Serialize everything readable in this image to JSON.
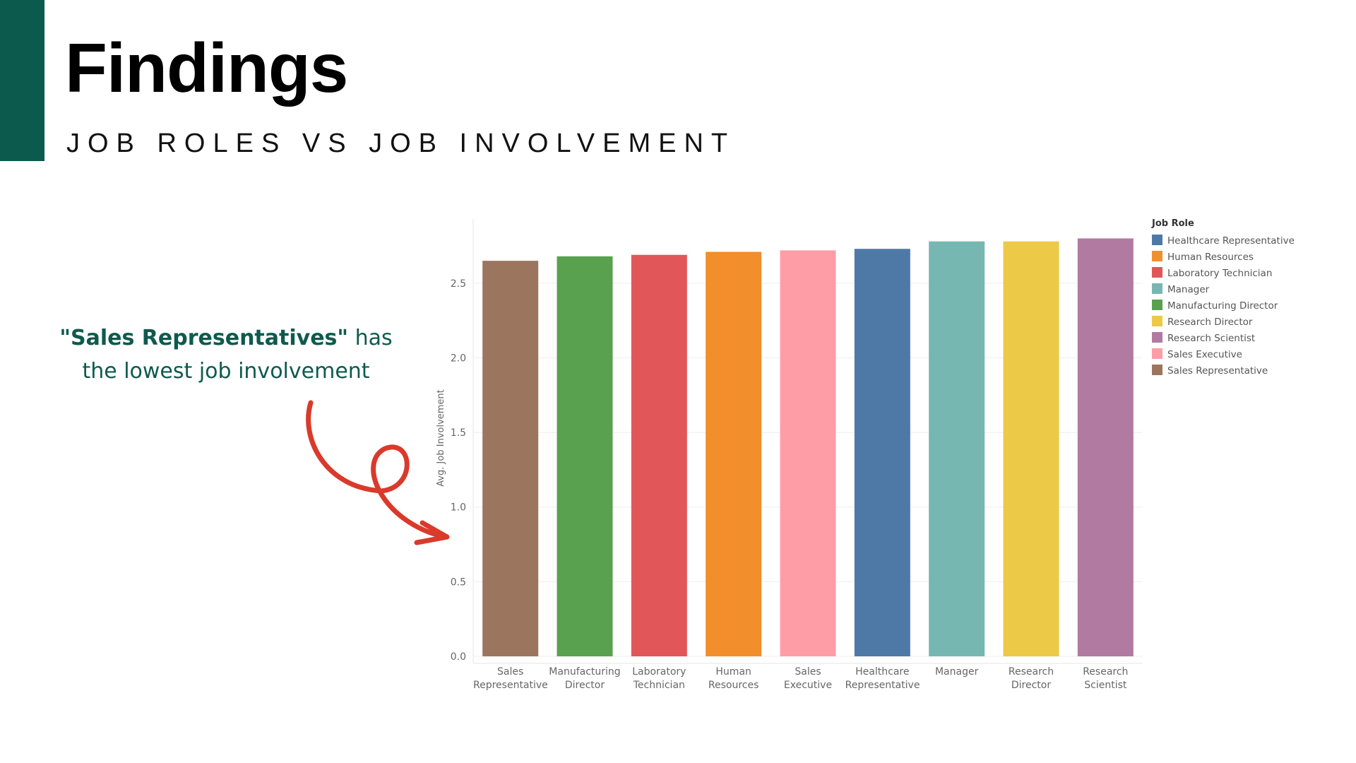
{
  "title": "Findings",
  "subtitle": "JOB ROLES VS JOB INVOLVEMENT",
  "annotation": {
    "bold": "\"Sales Representatives\"",
    "rest": " has the lowest job involvement"
  },
  "chart_data": {
    "type": "bar",
    "y_label": "Avg. Job Involvement",
    "categories": [
      "Sales Representative",
      "Manufacturing Director",
      "Laboratory Technician",
      "Human Resources",
      "Sales Executive",
      "Healthcare Representative",
      "Manager",
      "Research Director",
      "Research Scientist"
    ],
    "values": [
      2.65,
      2.68,
      2.69,
      2.71,
      2.72,
      2.73,
      2.78,
      2.78,
      2.8
    ],
    "colors": [
      "#9c755f",
      "#59a14f",
      "#e15759",
      "#f28e2b",
      "#ff9da7",
      "#4e79a7",
      "#76b7b2",
      "#edc948",
      "#b07aa1"
    ],
    "ylim": [
      0,
      2.93
    ],
    "yticks": [
      {
        "value": 0,
        "label": "0.0"
      },
      0.5,
      {
        "value": 1,
        "label": "1.0"
      },
      1.5,
      {
        "value": 2,
        "label": "2.0"
      },
      2.5
    ],
    "grid": true,
    "legend": {
      "title": "Job Role",
      "position": "right",
      "items": [
        "Healthcare Representative",
        "Human Resources",
        "Laboratory Technician",
        "Manager",
        "Manufacturing Director",
        "Research Director",
        "Research Scientist",
        "Sales Executive",
        "Sales Representative"
      ]
    }
  }
}
